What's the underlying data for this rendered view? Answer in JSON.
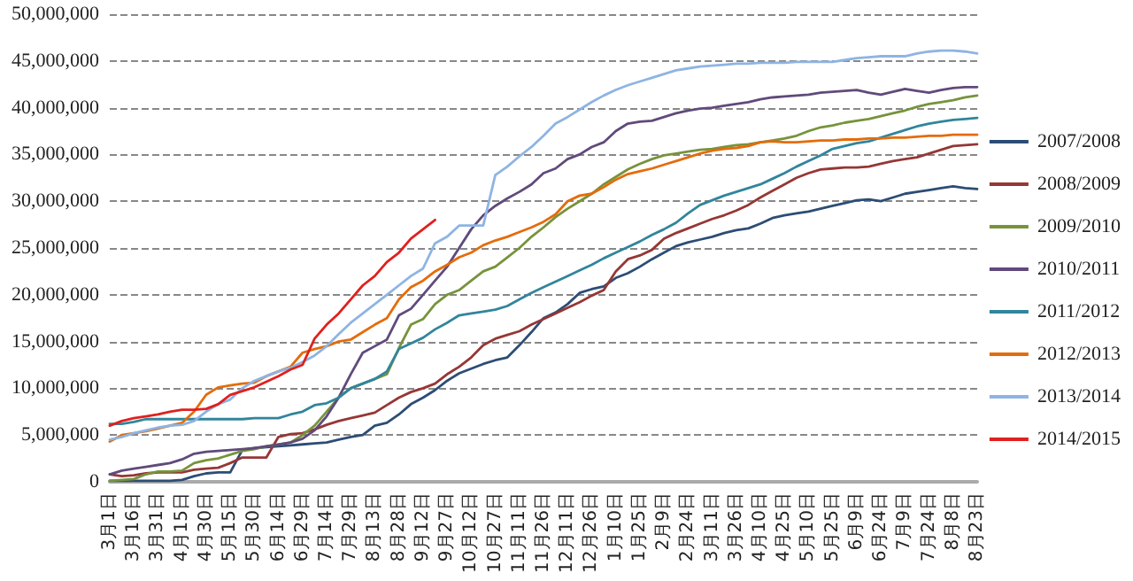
{
  "chart_data": {
    "type": "line",
    "categories": [
      "3月1日",
      null,
      "3月16日",
      null,
      "3月31日",
      null,
      "4月15日",
      null,
      "4月30日",
      null,
      "5月15日",
      null,
      "5月30日",
      null,
      "6月14日",
      null,
      "6月29日",
      null,
      "7月14日",
      null,
      "7月29日",
      null,
      "8月13日",
      null,
      "8月28日",
      null,
      "9月12日",
      null,
      "9月27日",
      null,
      "10月12日",
      null,
      "10月27日",
      null,
      "11月11日",
      null,
      "11月26日",
      null,
      "12月11日",
      null,
      "12月26日",
      null,
      "1月10日",
      null,
      "1月25日",
      null,
      "2月9日",
      null,
      "2月24日",
      null,
      "3月11日",
      null,
      "3月26日",
      null,
      "4月10日",
      null,
      "4月25日",
      null,
      "5月10日",
      null,
      "5月25日",
      null,
      "6月9日",
      null,
      "6月24日",
      null,
      "7月9日",
      null,
      "7月24日",
      null,
      "8月8日",
      null,
      "8月23日"
    ],
    "ylim": [
      0,
      50000000
    ],
    "yticks": [
      0,
      {
        "value": 5000000,
        "label": "5,000,000"
      },
      {
        "value": 10000000,
        "label": "10,000,000"
      },
      {
        "value": 15000000,
        "label": "15,000,000"
      },
      {
        "value": 20000000,
        "label": "20,000,000"
      },
      {
        "value": 25000000,
        "label": "25,000,000"
      },
      {
        "value": 30000000,
        "label": "30,000,000"
      },
      {
        "value": 35000000,
        "label": "35,000,000"
      },
      {
        "value": 40000000,
        "label": "40,000,000"
      },
      {
        "value": 45000000,
        "label": "45,000,000"
      },
      {
        "value": 50000000,
        "label": "50,000,000"
      }
    ],
    "grid": "y",
    "legend": "right",
    "marker": "none",
    "line_style": "solid",
    "series": [
      {
        "name": "2007/2008",
        "color": "#2c4d75",
        "values": [
          100000.0,
          100000.0,
          100000.0,
          100000.0,
          100000.0,
          100000.0,
          200000.0,
          600000.0,
          900000.0,
          1000000.0,
          1000000.0,
          3400000.0,
          3600000.0,
          3700000.0,
          3800000.0,
          3900000.0,
          4000000.0,
          4100000.0,
          4200000.0,
          4500000.0,
          4800000.0,
          5000000.0,
          6000000.0,
          6300000.0,
          7200000.0,
          8300000.0,
          9000000.0,
          9800000.0,
          10800000.0,
          11600000.0,
          12100000.0,
          12600000.0,
          13000000.0,
          13300000.0,
          14600000.0,
          16000000.0,
          17500000.0,
          18100000.0,
          19000000.0,
          20200000.0,
          20600000.0,
          20900000.0,
          21800000.0,
          22300000.0,
          23000000.0,
          23800000.0,
          24500000.0,
          25200000.0,
          25600000.0,
          25900000.0,
          26200000.0,
          26600000.0,
          26900000.0,
          27100000.0,
          27600000.0,
          28200000.0,
          28500000.0,
          28700000.0,
          28900000.0,
          29200000.0,
          29500000.0,
          29800000.0,
          30100000.0,
          30200000.0,
          30000000.0,
          30400000.0,
          30800000.0,
          31000000.0,
          31200000.0,
          31400000.0,
          31600000.0,
          31400000.0,
          31300000.0
        ]
      },
      {
        "name": "2008/2009",
        "color": "#953735",
        "values": [
          800000.0,
          600000.0,
          700000.0,
          900000.0,
          1000000.0,
          1000000.0,
          1000000.0,
          1300000.0,
          1400000.0,
          1500000.0,
          2000000.0,
          2600000.0,
          2600000.0,
          2600000.0,
          4800000.0,
          5100000.0,
          5200000.0,
          5600000.0,
          6100000.0,
          6500000.0,
          6800000.0,
          7100000.0,
          7400000.0,
          8200000.0,
          9000000.0,
          9600000.0,
          10000000.0,
          10500000.0,
          11500000.0,
          12300000.0,
          13300000.0,
          14600000.0,
          15300000.0,
          15700000.0,
          16100000.0,
          16800000.0,
          17400000.0,
          18000000.0,
          18600000.0,
          19200000.0,
          19900000.0,
          20500000.0,
          22500000.0,
          23800000.0,
          24200000.0,
          24800000.0,
          26000000.0,
          26600000.0,
          27100000.0,
          27600000.0,
          28100000.0,
          28500000.0,
          29000000.0,
          29600000.0,
          30400000.0,
          31100000.0,
          31800000.0,
          32500000.0,
          33000000.0,
          33400000.0,
          33500000.0,
          33600000.0,
          33600000.0,
          33700000.0,
          34000000.0,
          34300000.0,
          34500000.0,
          34700000.0,
          35100000.0,
          35500000.0,
          35900000.0,
          36000000.0,
          36100000.0
        ]
      },
      {
        "name": "2009/2010",
        "color": "#77933c",
        "values": [
          100000.0,
          200000.0,
          300000.0,
          800000.0,
          1100000.0,
          1100000.0,
          1200000.0,
          2000000.0,
          2300000.0,
          2500000.0,
          2900000.0,
          3300000.0,
          3500000.0,
          3800000.0,
          4000000.0,
          4200000.0,
          5000000.0,
          6000000.0,
          7500000.0,
          9000000.0,
          10000000.0,
          10500000.0,
          11000000.0,
          11500000.0,
          14300000.0,
          16800000.0,
          17400000.0,
          19000000.0,
          20000000.0,
          20500000.0,
          21500000.0,
          22500000.0,
          23000000.0,
          24000000.0,
          25000000.0,
          26200000.0,
          27200000.0,
          28300000.0,
          29200000.0,
          30000000.0,
          30800000.0,
          31800000.0,
          32600000.0,
          33400000.0,
          34000000.0,
          34500000.0,
          34900000.0,
          35100000.0,
          35300000.0,
          35500000.0,
          35600000.0,
          35800000.0,
          36000000.0,
          36100000.0,
          36300000.0,
          36500000.0,
          36700000.0,
          37000000.0,
          37500000.0,
          37900000.0,
          38100000.0,
          38400000.0,
          38600000.0,
          38800000.0,
          39100000.0,
          39400000.0,
          39700000.0,
          40100000.0,
          40400000.0,
          40600000.0,
          40800000.0,
          41100000.0,
          41300000.0
        ]
      },
      {
        "name": "2010/2011",
        "color": "#604a7b",
        "values": [
          800000.0,
          1200000.0,
          1400000.0,
          1600000.0,
          1800000.0,
          2000000.0,
          2400000.0,
          3000000.0,
          3200000.0,
          3300000.0,
          3400000.0,
          3500000.0,
          3600000.0,
          3800000.0,
          4000000.0,
          4200000.0,
          4600000.0,
          5500000.0,
          7000000.0,
          9000000.0,
          11500000.0,
          13800000.0,
          14500000.0,
          15200000.0,
          17800000.0,
          18500000.0,
          20000000.0,
          21500000.0,
          23000000.0,
          25000000.0,
          27000000.0,
          28500000.0,
          29500000.0,
          30300000.0,
          31000000.0,
          31800000.0,
          33000000.0,
          33500000.0,
          34500000.0,
          35000000.0,
          35800000.0,
          36300000.0,
          37500000.0,
          38300000.0,
          38500000.0,
          38600000.0,
          39000000.0,
          39400000.0,
          39700000.0,
          39900000.0,
          40000000.0,
          40200000.0,
          40400000.0,
          40600000.0,
          40900000.0,
          41100000.0,
          41200000.0,
          41300000.0,
          41400000.0,
          41600000.0,
          41700000.0,
          41800000.0,
          41900000.0,
          41600000.0,
          41400000.0,
          41700000.0,
          42000000.0,
          41800000.0,
          41600000.0,
          41900000.0,
          42100000.0,
          42200000.0,
          42200000.0
        ]
      },
      {
        "name": "2011/2012",
        "color": "#31859c",
        "values": [
          6200000.0,
          6200000.0,
          6400000.0,
          6700000.0,
          6700000.0,
          6700000.0,
          6700000.0,
          6700000.0,
          6700000.0,
          6700000.0,
          6700000.0,
          6700000.0,
          6800000.0,
          6800000.0,
          6800000.0,
          7200000.0,
          7500000.0,
          8200000.0,
          8400000.0,
          9000000.0,
          10000000.0,
          10500000.0,
          11000000.0,
          11800000.0,
          14200000.0,
          14800000.0,
          15400000.0,
          16300000.0,
          17000000.0,
          17800000.0,
          18000000.0,
          18200000.0,
          18400000.0,
          18800000.0,
          19500000.0,
          20200000.0,
          20800000.0,
          21400000.0,
          22000000.0,
          22600000.0,
          23200000.0,
          23900000.0,
          24500000.0,
          25100000.0,
          25700000.0,
          26400000.0,
          27000000.0,
          27700000.0,
          28700000.0,
          29600000.0,
          30100000.0,
          30600000.0,
          31000000.0,
          31400000.0,
          31800000.0,
          32400000.0,
          33000000.0,
          33700000.0,
          34300000.0,
          34900000.0,
          35600000.0,
          35900000.0,
          36200000.0,
          36400000.0,
          36800000.0,
          37200000.0,
          37600000.0,
          38000000.0,
          38300000.0,
          38500000.0,
          38700000.0,
          38800000.0,
          38900000.0
        ]
      },
      {
        "name": "2012/2013",
        "color": "#e46c0a",
        "values": [
          4300000.0,
          5000000.0,
          5200000.0,
          5400000.0,
          5700000.0,
          6000000.0,
          6300000.0,
          7500000.0,
          9300000.0,
          10100000.0,
          10300000.0,
          10500000.0,
          10600000.0,
          11300000.0,
          11800000.0,
          12300000.0,
          13800000.0,
          14200000.0,
          14500000.0,
          15000000.0,
          15200000.0,
          16000000.0,
          16800000.0,
          17500000.0,
          19500000.0,
          20800000.0,
          21500000.0,
          22500000.0,
          23200000.0,
          24000000.0,
          24500000.0,
          25300000.0,
          25800000.0,
          26200000.0,
          26700000.0,
          27200000.0,
          27800000.0,
          28600000.0,
          30000000.0,
          30600000.0,
          30800000.0,
          31500000.0,
          32300000.0,
          32900000.0,
          33200000.0,
          33500000.0,
          33900000.0,
          34300000.0,
          34700000.0,
          35100000.0,
          35400000.0,
          35600000.0,
          35700000.0,
          35900000.0,
          36300000.0,
          36400000.0,
          36300000.0,
          36300000.0,
          36400000.0,
          36500000.0,
          36500000.0,
          36600000.0,
          36600000.0,
          36700000.0,
          36700000.0,
          36800000.0,
          36800000.0,
          36900000.0,
          37000000.0,
          37000000.0,
          37100000.0,
          37100000.0,
          37100000.0
        ]
      },
      {
        "name": "2013/2014",
        "color": "#8eb4e3",
        "values": [
          4500000.0,
          4800000.0,
          5200000.0,
          5500000.0,
          5800000.0,
          6000000.0,
          6100000.0,
          6500000.0,
          7500000.0,
          8300000.0,
          8800000.0,
          10000000.0,
          10800000.0,
          11300000.0,
          11800000.0,
          12200000.0,
          12800000.0,
          13500000.0,
          14500000.0,
          15800000.0,
          17000000.0,
          18000000.0,
          19000000.0,
          20000000.0,
          21000000.0,
          22000000.0,
          22800000.0,
          25500000.0,
          26200000.0,
          27400000.0,
          27400000.0,
          27400000.0,
          32800000.0,
          33700000.0,
          34800000.0,
          35800000.0,
          37000000.0,
          38300000.0,
          39000000.0,
          39800000.0,
          40600000.0,
          41300000.0,
          41900000.0,
          42400000.0,
          42800000.0,
          43200000.0,
          43600000.0,
          44000000.0,
          44200000.0,
          44400000.0,
          44500000.0,
          44600000.0,
          44700000.0,
          44700000.0,
          44800000.0,
          44800000.0,
          44800000.0,
          44900000.0,
          44900000.0,
          44900000.0,
          44900000.0,
          45100000.0,
          45300000.0,
          45400000.0,
          45500000.0,
          45500000.0,
          45500000.0,
          45800000.0,
          46000000.0,
          46100000.0,
          46100000.0,
          46000000.0,
          45800000.0
        ]
      },
      {
        "name": "2014/2015",
        "color": "#e0201e",
        "values": [
          6000000.0,
          6500000.0,
          6800000.0,
          7000000.0,
          7200000.0,
          7500000.0,
          7700000.0,
          7700000.0,
          7800000.0,
          8300000.0,
          9300000.0,
          9700000.0,
          10100000.0,
          10700000.0,
          11300000.0,
          12000000.0,
          12500000.0,
          15300000.0,
          16800000.0,
          18000000.0,
          19500000.0,
          21000000.0,
          22000000.0,
          23500000.0,
          24500000.0,
          26000000.0,
          27000000.0,
          28000000.0,
          null,
          null,
          null,
          null,
          null,
          null,
          null,
          null,
          null,
          null,
          null,
          null,
          null,
          null,
          null,
          null,
          null,
          null,
          null,
          null,
          null,
          null,
          null,
          null,
          null,
          null,
          null,
          null,
          null,
          null,
          null,
          null,
          null,
          null,
          null,
          null,
          null,
          null,
          null,
          null,
          null,
          null,
          null,
          null,
          null
        ]
      }
    ]
  }
}
